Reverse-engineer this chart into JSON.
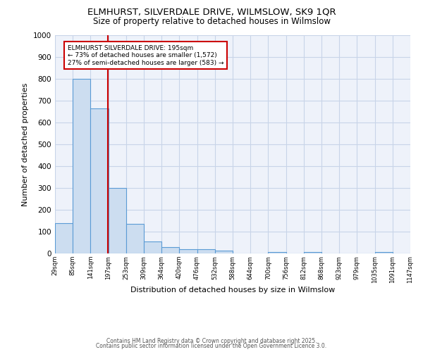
{
  "title_line1": "ELMHURST, SILVERDALE DRIVE, WILMSLOW, SK9 1QR",
  "title_line2": "Size of property relative to detached houses in Wilmslow",
  "xlabel": "Distribution of detached houses by size in Wilmslow",
  "ylabel": "Number of detached properties",
  "bar_left_edges": [
    29,
    85,
    141,
    197,
    253,
    309,
    364,
    420,
    476,
    532,
    588,
    644,
    700,
    756,
    812,
    868,
    923,
    979,
    1035,
    1091
  ],
  "bar_heights": [
    140,
    800,
    665,
    300,
    135,
    55,
    30,
    20,
    20,
    12,
    0,
    0,
    8,
    0,
    8,
    0,
    0,
    0,
    5,
    0
  ],
  "bin_width": 56,
  "bar_color": "#ccddf0",
  "bar_edge_color": "#5b9bd5",
  "grid_color": "#c8d4e8",
  "background_color": "#eef2fa",
  "red_line_x": 195,
  "annotation_line1": "ELMHURST SILVERDALE DRIVE: 195sqm",
  "annotation_line2": "← 73% of detached houses are smaller (1,572)",
  "annotation_line3": "27% of semi-detached houses are larger (583) →",
  "annotation_box_color": "#ffffff",
  "annotation_border_color": "#cc0000",
  "ylim": [
    0,
    1000
  ],
  "xlim": [
    29,
    1147
  ],
  "tick_labels": [
    "29sqm",
    "85sqm",
    "141sqm",
    "197sqm",
    "253sqm",
    "309sqm",
    "364sqm",
    "420sqm",
    "476sqm",
    "532sqm",
    "588sqm",
    "644sqm",
    "700sqm",
    "756sqm",
    "812sqm",
    "868sqm",
    "923sqm",
    "979sqm",
    "1035sqm",
    "1091sqm",
    "1147sqm"
  ],
  "tick_positions": [
    29,
    85,
    141,
    197,
    253,
    309,
    364,
    420,
    476,
    532,
    588,
    644,
    700,
    756,
    812,
    868,
    923,
    979,
    1035,
    1091,
    1147
  ],
  "footer_line1": "Contains HM Land Registry data © Crown copyright and database right 2025.",
  "footer_line2": "Contains public sector information licensed under the Open Government Licence 3.0."
}
